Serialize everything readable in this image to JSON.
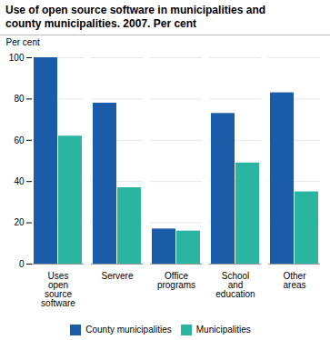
{
  "chart_data": {
    "type": "bar",
    "title": "Use of open source software in municipalities and\ncounty municipalities. 2007. Per cent",
    "y_label": "Per cent",
    "categories": [
      "Uses\nopen\nsource\nsoftware",
      "Servere",
      "Office\nprograms",
      "School\nand\neducation",
      "Other\nareas"
    ],
    "series": [
      {
        "name": "County municipalities",
        "color": "#1a5ca8",
        "values": [
          100,
          78,
          17,
          73,
          83
        ]
      },
      {
        "name": "Municipalities",
        "color": "#2ab5a0",
        "values": [
          62,
          37,
          16,
          49,
          35
        ]
      }
    ],
    "ylim": [
      0,
      100
    ],
    "yticks": [
      0,
      20,
      40,
      60,
      80,
      100
    ],
    "grid": true,
    "legend": "bottom"
  }
}
